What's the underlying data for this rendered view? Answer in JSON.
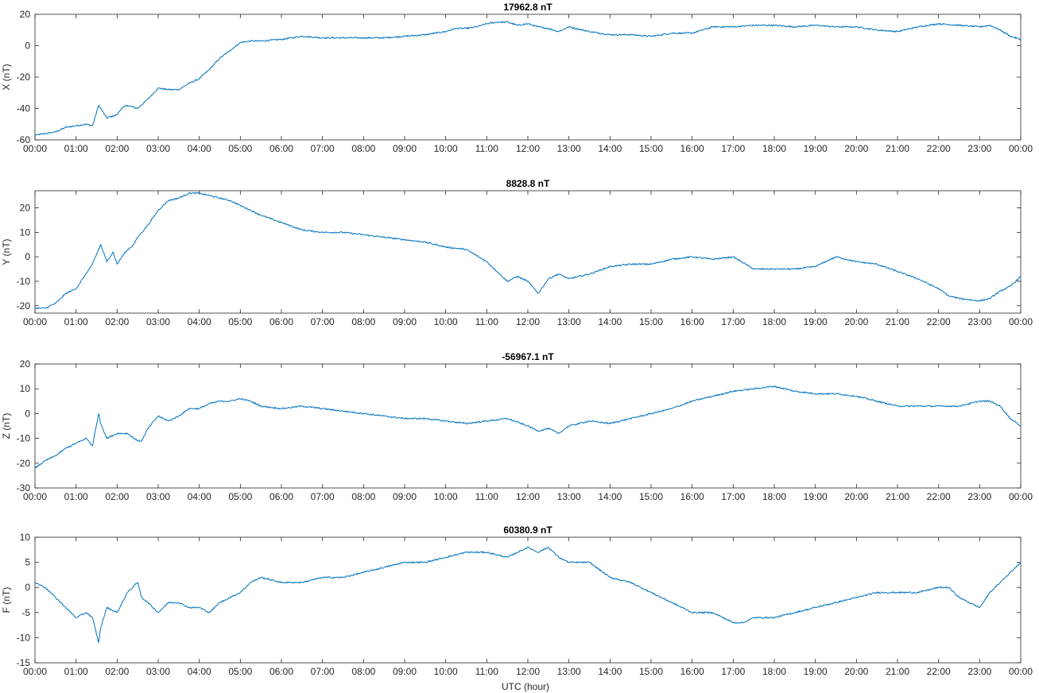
{
  "figure": {
    "xlabel": "UTC (hour)",
    "line_color": "#0072bd",
    "axis_color": "#262626"
  },
  "chart_data": [
    {
      "type": "line",
      "title": "17962.8 nT",
      "xlabel": "",
      "ylabel": "X (nT)",
      "xlim": [
        0,
        24
      ],
      "ylim": [
        -60,
        20
      ],
      "yticks": [
        -60,
        -40,
        -20,
        0,
        20
      ],
      "xtick_labels": [
        "00:00",
        "01:00",
        "02:00",
        "03:00",
        "04:00",
        "05:00",
        "06:00",
        "07:00",
        "08:00",
        "09:00",
        "10:00",
        "11:00",
        "12:00",
        "13:00",
        "14:00",
        "15:00",
        "16:00",
        "17:00",
        "18:00",
        "19:00",
        "20:00",
        "21:00",
        "22:00",
        "23:00",
        "00:00"
      ],
      "grid": false,
      "series": [
        {
          "x": [
            0,
            0.25,
            0.5,
            0.75,
            1.0,
            1.25,
            1.4,
            1.55,
            1.6,
            1.75,
            2.0,
            2.1,
            2.25,
            2.5,
            2.75,
            3.0,
            3.25,
            3.5,
            3.75,
            4.0,
            4.25,
            4.5,
            4.75,
            5.0,
            5.25,
            5.5,
            6.0,
            6.5,
            7.0,
            7.5,
            8.0,
            8.5,
            9.0,
            9.5,
            10.0,
            10.25,
            10.5,
            10.75,
            11.0,
            11.25,
            11.5,
            11.75,
            12.0,
            12.25,
            12.5,
            12.75,
            13.0,
            13.5,
            14.0,
            14.5,
            15.0,
            15.5,
            16.0,
            16.5,
            17.0,
            17.5,
            18.0,
            18.5,
            19.0,
            19.5,
            20.0,
            20.5,
            21.0,
            21.5,
            22.0,
            22.5,
            23.0,
            23.25,
            23.5,
            23.75,
            24.0
          ],
          "y": [
            -57,
            -56,
            -55,
            -52,
            -51,
            -50,
            -51,
            -38,
            -40,
            -46,
            -44,
            -40,
            -38,
            -40,
            -34,
            -27,
            -28,
            -28,
            -24,
            -21,
            -15,
            -8,
            -3,
            2,
            3,
            3,
            4,
            6,
            5,
            5,
            5,
            5,
            6,
            7,
            9,
            11,
            11,
            12,
            14,
            15,
            15,
            13,
            14,
            12,
            11,
            9,
            12,
            9,
            7,
            7,
            6,
            8,
            8,
            12,
            12,
            13,
            13,
            12,
            13,
            12,
            12,
            10,
            9,
            12,
            14,
            13,
            12,
            13,
            10,
            6,
            4
          ]
        }
      ]
    },
    {
      "type": "line",
      "title": "8828.8 nT",
      "xlabel": "",
      "ylabel": "Y (nT)",
      "xlim": [
        0,
        24
      ],
      "ylim": [
        -23,
        27
      ],
      "yticks": [
        -20,
        -10,
        0,
        10,
        20
      ],
      "xtick_labels": [
        "00:00",
        "01:00",
        "02:00",
        "03:00",
        "04:00",
        "05:00",
        "06:00",
        "07:00",
        "08:00",
        "09:00",
        "10:00",
        "11:00",
        "12:00",
        "13:00",
        "14:00",
        "15:00",
        "16:00",
        "17:00",
        "18:00",
        "19:00",
        "20:00",
        "21:00",
        "22:00",
        "23:00",
        "00:00"
      ],
      "grid": false,
      "series": [
        {
          "x": [
            0,
            0.25,
            0.5,
            0.75,
            1.0,
            1.2,
            1.4,
            1.6,
            1.75,
            1.9,
            2.0,
            2.2,
            2.4,
            2.5,
            2.75,
            3.0,
            3.25,
            3.5,
            3.75,
            4.0,
            4.25,
            4.5,
            4.75,
            5.0,
            5.25,
            5.5,
            6.0,
            6.5,
            7.0,
            7.5,
            8.0,
            8.5,
            9.0,
            9.5,
            10.0,
            10.5,
            11.0,
            11.25,
            11.5,
            11.75,
            12.0,
            12.25,
            12.5,
            12.75,
            13.0,
            13.5,
            14.0,
            14.5,
            15.0,
            15.5,
            16.0,
            16.5,
            17.0,
            17.5,
            18.0,
            18.5,
            19.0,
            19.25,
            19.5,
            20.0,
            20.5,
            21.0,
            21.5,
            22.0,
            22.25,
            22.5,
            23.0,
            23.25,
            23.5,
            23.75,
            24.0
          ],
          "y": [
            -21,
            -21,
            -19,
            -15,
            -13,
            -8,
            -3,
            5,
            -2,
            2,
            -3,
            2,
            5,
            8,
            13,
            19,
            23,
            24,
            26,
            26,
            25,
            24,
            23,
            21,
            19,
            17,
            14,
            11,
            10,
            10,
            9,
            8,
            7,
            6,
            4,
            3,
            -2,
            -6,
            -10,
            -8,
            -10,
            -15,
            -9,
            -7,
            -9,
            -7,
            -4,
            -3,
            -3,
            -1,
            0,
            -1,
            0,
            -5,
            -5,
            -5,
            -4,
            -2,
            0,
            -2,
            -3,
            -6,
            -9,
            -13,
            -16,
            -17,
            -18,
            -17,
            -14,
            -12,
            -8
          ]
        }
      ]
    },
    {
      "type": "line",
      "title": "-56967.1 nT",
      "xlabel": "",
      "ylabel": "Z (nT)",
      "xlim": [
        0,
        24
      ],
      "ylim": [
        -30,
        20
      ],
      "yticks": [
        -30,
        -20,
        -10,
        0,
        10,
        20
      ],
      "xtick_labels": [
        "00:00",
        "01:00",
        "02:00",
        "03:00",
        "04:00",
        "05:00",
        "06:00",
        "07:00",
        "08:00",
        "09:00",
        "10:00",
        "11:00",
        "12:00",
        "13:00",
        "14:00",
        "15:00",
        "16:00",
        "17:00",
        "18:00",
        "19:00",
        "20:00",
        "21:00",
        "22:00",
        "23:00",
        "00:00"
      ],
      "grid": false,
      "series": [
        {
          "x": [
            0,
            0.25,
            0.5,
            0.75,
            1.0,
            1.25,
            1.4,
            1.55,
            1.6,
            1.75,
            2.0,
            2.25,
            2.5,
            2.6,
            2.75,
            3.0,
            3.25,
            3.5,
            3.75,
            4.0,
            4.25,
            4.5,
            4.75,
            5.0,
            5.25,
            5.5,
            6.0,
            6.5,
            7.0,
            7.5,
            8.0,
            8.5,
            9.0,
            9.5,
            10.0,
            10.5,
            11.0,
            11.5,
            12.0,
            12.25,
            12.5,
            12.75,
            13.0,
            13.5,
            14.0,
            14.5,
            15.0,
            15.5,
            16.0,
            16.5,
            17.0,
            17.5,
            18.0,
            18.5,
            19.0,
            19.5,
            20.0,
            20.5,
            21.0,
            21.5,
            22.0,
            22.5,
            23.0,
            23.25,
            23.5,
            23.75,
            24.0
          ],
          "y": [
            -22,
            -19,
            -17,
            -14,
            -12,
            -10,
            -13,
            0,
            -4,
            -10,
            -8,
            -8,
            -11,
            -11,
            -6,
            -1,
            -3,
            -1,
            2,
            2,
            4,
            5,
            5,
            6,
            5,
            3,
            2,
            3,
            2,
            1,
            0,
            -1,
            -2,
            -2,
            -3,
            -4,
            -3,
            -2,
            -5,
            -7,
            -6,
            -8,
            -5,
            -3,
            -4,
            -2,
            0,
            2,
            5,
            7,
            9,
            10,
            11,
            9,
            8,
            8,
            7,
            5,
            3,
            3,
            3,
            3,
            5,
            5,
            3,
            -2,
            -5
          ]
        }
      ]
    },
    {
      "type": "line",
      "title": "60380.9 nT",
      "xlabel": "UTC (hour)",
      "ylabel": "F (nT)",
      "xlim": [
        0,
        24
      ],
      "ylim": [
        -15,
        10
      ],
      "yticks": [
        -15,
        -10,
        -5,
        0,
        5,
        10
      ],
      "xtick_labels": [
        "00:00",
        "01:00",
        "02:00",
        "03:00",
        "04:00",
        "05:00",
        "06:00",
        "07:00",
        "08:00",
        "09:00",
        "10:00",
        "11:00",
        "12:00",
        "13:00",
        "14:00",
        "15:00",
        "16:00",
        "17:00",
        "18:00",
        "19:00",
        "20:00",
        "21:00",
        "22:00",
        "23:00",
        "00:00"
      ],
      "grid": false,
      "series": [
        {
          "x": [
            0,
            0.25,
            0.5,
            0.75,
            1.0,
            1.25,
            1.4,
            1.55,
            1.6,
            1.75,
            2.0,
            2.25,
            2.5,
            2.6,
            2.75,
            3.0,
            3.25,
            3.5,
            3.75,
            4.0,
            4.25,
            4.5,
            4.75,
            5.0,
            5.25,
            5.5,
            6.0,
            6.5,
            7.0,
            7.5,
            8.0,
            8.5,
            9.0,
            9.5,
            10.0,
            10.5,
            11.0,
            11.5,
            11.75,
            12.0,
            12.25,
            12.5,
            12.75,
            13.0,
            13.5,
            14.0,
            14.5,
            15.0,
            15.5,
            16.0,
            16.5,
            17.0,
            17.25,
            17.5,
            18.0,
            18.5,
            19.0,
            19.5,
            20.0,
            20.5,
            21.0,
            21.5,
            22.0,
            22.25,
            22.5,
            23.0,
            23.25,
            23.5,
            23.75,
            24.0
          ],
          "y": [
            1,
            0,
            -2,
            -4,
            -6,
            -5,
            -6,
            -11,
            -8,
            -4,
            -5,
            -1,
            1,
            -2,
            -3,
            -5,
            -3,
            -3,
            -4,
            -4,
            -5,
            -3,
            -2,
            -1,
            1,
            2,
            1,
            1,
            2,
            2,
            3,
            4,
            5,
            5,
            6,
            7,
            7,
            6,
            7,
            8,
            7,
            8,
            6,
            5,
            5,
            2,
            1,
            -1,
            -3,
            -5,
            -5,
            -7,
            -7,
            -6,
            -6,
            -5,
            -4,
            -3,
            -2,
            -1,
            -1,
            -1,
            0,
            0,
            -2,
            -4,
            -1,
            1,
            3,
            5
          ]
        }
      ]
    }
  ]
}
